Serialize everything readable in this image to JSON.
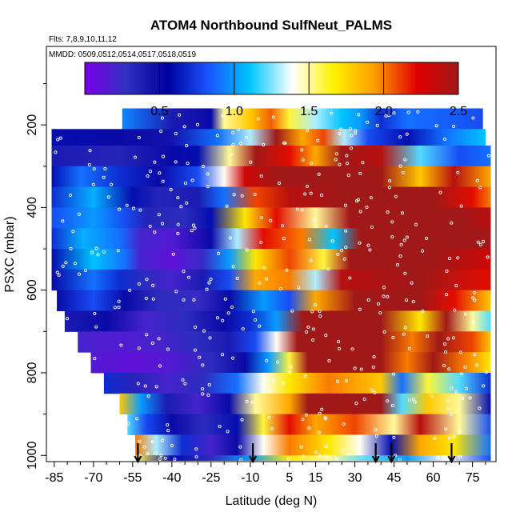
{
  "chart_data": {
    "type": "heatmap",
    "title": "ATOM4 Northbound SulfNeut_PALMS",
    "flights_label": "Flts: 7,8,9,10,11,12",
    "mmdd_label": "MMDD: 0509,0512,0514,0517,0518,0519",
    "xlabel": "Latitude (deg N)",
    "ylabel": "PSXC (mbar)",
    "xlim": [
      -88,
      84
    ],
    "ylim": [
      1015,
      10
    ],
    "x_ticks": [
      -85,
      -70,
      -55,
      -40,
      -25,
      -10,
      5,
      15,
      30,
      45,
      60,
      75
    ],
    "y_ticks": [
      200,
      400,
      600,
      800,
      1000
    ],
    "colorbar": {
      "range": [
        0,
        2.5
      ],
      "ticks": [
        0.5,
        1.0,
        1.5,
        2.0,
        2.5
      ],
      "tick_labels": [
        "0.5",
        "1.0",
        "1.5",
        "2.0",
        "2.5"
      ],
      "colors": [
        "#7a00e6",
        "#3030c0",
        "#0000a0",
        "#1a56ff",
        "#00c8ff",
        "#ffffff",
        "#fff200",
        "#ff9a00",
        "#e00000",
        "#a01818"
      ]
    },
    "arrow_latitudes": [
      -53,
      -9,
      38,
      44,
      67
    ],
    "rows": [
      {
        "p_top": 160,
        "p_bot": 210,
        "x_min": -59,
        "x_max": 79,
        "nodes": [
          [
            -59,
            0.95
          ],
          [
            -40,
            0.4
          ],
          [
            -25,
            0.5
          ],
          [
            -20,
            1.5
          ],
          [
            -10,
            1.8
          ],
          [
            -2,
            2.05
          ],
          [
            5,
            1.6
          ],
          [
            15,
            1.3
          ],
          [
            25,
            1.1
          ],
          [
            32,
            1.0
          ],
          [
            40,
            0.7
          ],
          [
            50,
            0.9
          ],
          [
            79,
            0.8
          ]
        ]
      },
      {
        "p_top": 210,
        "p_bot": 250,
        "x_min": -86,
        "x_max": 80,
        "nodes": [
          [
            -86,
            0.6
          ],
          [
            -60,
            0.5
          ],
          [
            -40,
            0.45
          ],
          [
            -22,
            0.9
          ],
          [
            -10,
            1.3
          ],
          [
            0,
            2.6
          ],
          [
            10,
            1.9
          ],
          [
            18,
            2.1
          ],
          [
            26,
            1.3
          ],
          [
            35,
            0.8
          ],
          [
            50,
            0.6
          ],
          [
            65,
            0.9
          ],
          [
            80,
            1.1
          ]
        ]
      },
      {
        "p_top": 250,
        "p_bot": 300,
        "x_min": -86,
        "x_max": 82,
        "nodes": [
          [
            -86,
            0.4
          ],
          [
            -60,
            0.35
          ],
          [
            -40,
            0.5
          ],
          [
            -30,
            0.6
          ],
          [
            -18,
            1.5
          ],
          [
            -8,
            2.6
          ],
          [
            5,
            2.2
          ],
          [
            15,
            1.9
          ],
          [
            25,
            2.6
          ],
          [
            40,
            2.4
          ],
          [
            55,
            1.2
          ],
          [
            70,
            0.8
          ],
          [
            82,
            0.9
          ]
        ]
      },
      {
        "p_top": 300,
        "p_bot": 350,
        "x_min": -86,
        "x_max": 82,
        "nodes": [
          [
            -86,
            0.6
          ],
          [
            -75,
            0.9
          ],
          [
            -60,
            0.7
          ],
          [
            -45,
            0.5
          ],
          [
            -30,
            0.8
          ],
          [
            -20,
            1.4
          ],
          [
            -12,
            2.3
          ],
          [
            0,
            2.6
          ],
          [
            20,
            2.6
          ],
          [
            40,
            2.5
          ],
          [
            55,
            1.8
          ],
          [
            68,
            2.4
          ],
          [
            82,
            1.9
          ]
        ]
      },
      {
        "p_top": 350,
        "p_bot": 400,
        "x_min": -86,
        "x_max": 82,
        "nodes": [
          [
            -86,
            0.7
          ],
          [
            -70,
            1.05
          ],
          [
            -55,
            0.6
          ],
          [
            -45,
            0.35
          ],
          [
            -30,
            0.4
          ],
          [
            -20,
            0.9
          ],
          [
            -8,
            2.1
          ],
          [
            5,
            2.4
          ],
          [
            25,
            2.6
          ],
          [
            45,
            2.6
          ],
          [
            60,
            2.5
          ],
          [
            75,
            2.2
          ],
          [
            82,
            2.0
          ]
        ]
      },
      {
        "p_top": 400,
        "p_bot": 450,
        "x_min": -86,
        "x_max": 82,
        "nodes": [
          [
            -86,
            0.8
          ],
          [
            -70,
            1.0
          ],
          [
            -58,
            0.8
          ],
          [
            -50,
            0.35
          ],
          [
            -35,
            0.3
          ],
          [
            -25,
            0.6
          ],
          [
            -12,
            1.7
          ],
          [
            0,
            2.2
          ],
          [
            15,
            1.5
          ],
          [
            28,
            2.6
          ],
          [
            50,
            2.6
          ],
          [
            70,
            2.6
          ],
          [
            82,
            2.4
          ]
        ]
      },
      {
        "p_top": 450,
        "p_bot": 500,
        "x_min": -86,
        "x_max": 82,
        "nodes": [
          [
            -86,
            0.7
          ],
          [
            -74,
            1.05
          ],
          [
            -60,
            0.9
          ],
          [
            -52,
            0.2
          ],
          [
            -40,
            0.15
          ],
          [
            -25,
            0.5
          ],
          [
            -15,
            1.3
          ],
          [
            -5,
            2.2
          ],
          [
            10,
            2.0
          ],
          [
            22,
            1.1
          ],
          [
            32,
            2.6
          ],
          [
            60,
            2.6
          ],
          [
            82,
            2.5
          ]
        ]
      },
      {
        "p_top": 500,
        "p_bot": 550,
        "x_min": -86,
        "x_max": 82,
        "nodes": [
          [
            -86,
            0.6
          ],
          [
            -70,
            1.1
          ],
          [
            -58,
            0.9
          ],
          [
            -52,
            0.2
          ],
          [
            -40,
            0.1
          ],
          [
            -28,
            0.25
          ],
          [
            -18,
            1.0
          ],
          [
            -8,
            1.7
          ],
          [
            5,
            2.1
          ],
          [
            18,
            1.6
          ],
          [
            28,
            2.6
          ],
          [
            60,
            2.6
          ],
          [
            82,
            2.3
          ]
        ]
      },
      {
        "p_top": 550,
        "p_bot": 600,
        "x_min": -86,
        "x_max": 82,
        "nodes": [
          [
            -86,
            0.5
          ],
          [
            -70,
            0.9
          ],
          [
            -60,
            0.7
          ],
          [
            -50,
            0.3
          ],
          [
            -40,
            0.2
          ],
          [
            -28,
            0.4
          ],
          [
            -18,
            0.8
          ],
          [
            -8,
            1.9
          ],
          [
            5,
            2.0
          ],
          [
            15,
            1.3
          ],
          [
            25,
            2.4
          ],
          [
            55,
            2.6
          ],
          [
            82,
            2.2
          ]
        ]
      },
      {
        "p_top": 600,
        "p_bot": 650,
        "x_min": -84,
        "x_max": 82,
        "nodes": [
          [
            -84,
            0.5
          ],
          [
            -70,
            0.8
          ],
          [
            -58,
            0.5
          ],
          [
            -45,
            0.3
          ],
          [
            -30,
            0.25
          ],
          [
            -18,
            0.5
          ],
          [
            -5,
            1.0
          ],
          [
            5,
            0.8
          ],
          [
            15,
            1.9
          ],
          [
            30,
            2.6
          ],
          [
            55,
            2.6
          ],
          [
            68,
            2.2
          ],
          [
            82,
            1.8
          ]
        ]
      },
      {
        "p_top": 650,
        "p_bot": 700,
        "x_min": -81,
        "x_max": 82,
        "nodes": [
          [
            -81,
            0.4
          ],
          [
            -65,
            0.5
          ],
          [
            -50,
            0.2
          ],
          [
            -35,
            0.3
          ],
          [
            -20,
            0.5
          ],
          [
            -10,
            0.7
          ],
          [
            0,
            1.0
          ],
          [
            10,
            2.6
          ],
          [
            40,
            2.6
          ],
          [
            55,
            1.7
          ],
          [
            65,
            2.5
          ],
          [
            75,
            1.5
          ],
          [
            82,
            1.2
          ]
        ]
      },
      {
        "p_top": 700,
        "p_bot": 750,
        "x_min": -76,
        "x_max": 82,
        "nodes": [
          [
            -76,
            0.2
          ],
          [
            -60,
            0.15
          ],
          [
            -45,
            0.2
          ],
          [
            -30,
            0.3
          ],
          [
            -18,
            0.4
          ],
          [
            -8,
            0.8
          ],
          [
            0,
            1.4
          ],
          [
            8,
            2.6
          ],
          [
            40,
            2.6
          ],
          [
            52,
            2.0
          ],
          [
            62,
            2.6
          ],
          [
            75,
            2.1
          ],
          [
            82,
            1.8
          ]
        ]
      },
      {
        "p_top": 750,
        "p_bot": 800,
        "x_min": -71,
        "x_max": 82,
        "nodes": [
          [
            -71,
            0.15
          ],
          [
            -55,
            0.1
          ],
          [
            -40,
            0.15
          ],
          [
            -25,
            0.3
          ],
          [
            -12,
            0.5
          ],
          [
            -3,
            1.0
          ],
          [
            5,
            1.6
          ],
          [
            12,
            2.6
          ],
          [
            40,
            2.6
          ],
          [
            50,
            2.0
          ],
          [
            60,
            2.6
          ],
          [
            72,
            2.0
          ],
          [
            82,
            1.7
          ]
        ]
      },
      {
        "p_top": 800,
        "p_bot": 850,
        "x_min": -66,
        "x_max": 82,
        "nodes": [
          [
            -66,
            0.7
          ],
          [
            -55,
            0.35
          ],
          [
            -42,
            0.2
          ],
          [
            -28,
            0.3
          ],
          [
            -15,
            0.9
          ],
          [
            -5,
            1.4
          ],
          [
            5,
            1.7
          ],
          [
            20,
            2.0
          ],
          [
            40,
            1.8
          ],
          [
            48,
            0.9
          ],
          [
            58,
            1.6
          ],
          [
            70,
            1.2
          ],
          [
            82,
            0.7
          ]
        ]
      },
      {
        "p_top": 850,
        "p_bot": 900,
        "x_min": -60,
        "x_max": 82,
        "nodes": [
          [
            -60,
            1.8
          ],
          [
            -52,
            1.0
          ],
          [
            -42,
            0.4
          ],
          [
            -30,
            0.2
          ],
          [
            -18,
            0.5
          ],
          [
            -8,
            1.5
          ],
          [
            5,
            1.9
          ],
          [
            12,
            2.6
          ],
          [
            40,
            2.6
          ],
          [
            48,
            1.2
          ],
          [
            58,
            1.8
          ],
          [
            70,
            1.5
          ],
          [
            82,
            0.6
          ]
        ]
      },
      {
        "p_top": 900,
        "p_bot": 950,
        "x_min": -57,
        "x_max": 82,
        "nodes": [
          [
            -57,
            1.2
          ],
          [
            -50,
            0.8
          ],
          [
            -40,
            0.5
          ],
          [
            -28,
            0.3
          ],
          [
            -15,
            0.6
          ],
          [
            -5,
            1.6
          ],
          [
            5,
            2.2
          ],
          [
            15,
            1.9
          ],
          [
            30,
            2.1
          ],
          [
            45,
            1.5
          ],
          [
            55,
            2.4
          ],
          [
            70,
            1.5
          ],
          [
            82,
            0.8
          ]
        ]
      },
      {
        "p_top": 950,
        "p_bot": 1000,
        "x_min": -54,
        "x_max": 82,
        "nodes": [
          [
            -54,
            2.0
          ],
          [
            -46,
            1.3
          ],
          [
            -36,
            0.7
          ],
          [
            -25,
            0.2
          ],
          [
            -15,
            0.5
          ],
          [
            -5,
            1.4
          ],
          [
            5,
            2.0
          ],
          [
            20,
            1.7
          ],
          [
            32,
            1.4
          ],
          [
            44,
            0.6
          ],
          [
            55,
            1.9
          ],
          [
            68,
            1.7
          ],
          [
            82,
            0.9
          ]
        ]
      },
      {
        "p_top": 1000,
        "p_bot": 1012,
        "x_min": -54,
        "x_max": 82,
        "nodes": [
          [
            -54,
            1.6
          ],
          [
            -40,
            0.6
          ],
          [
            -25,
            0.3
          ],
          [
            -10,
            1.0
          ],
          [
            5,
            1.7
          ],
          [
            20,
            1.5
          ],
          [
            35,
            1.2
          ],
          [
            50,
            1.0
          ],
          [
            65,
            1.4
          ],
          [
            82,
            0.8
          ]
        ]
      }
    ]
  }
}
